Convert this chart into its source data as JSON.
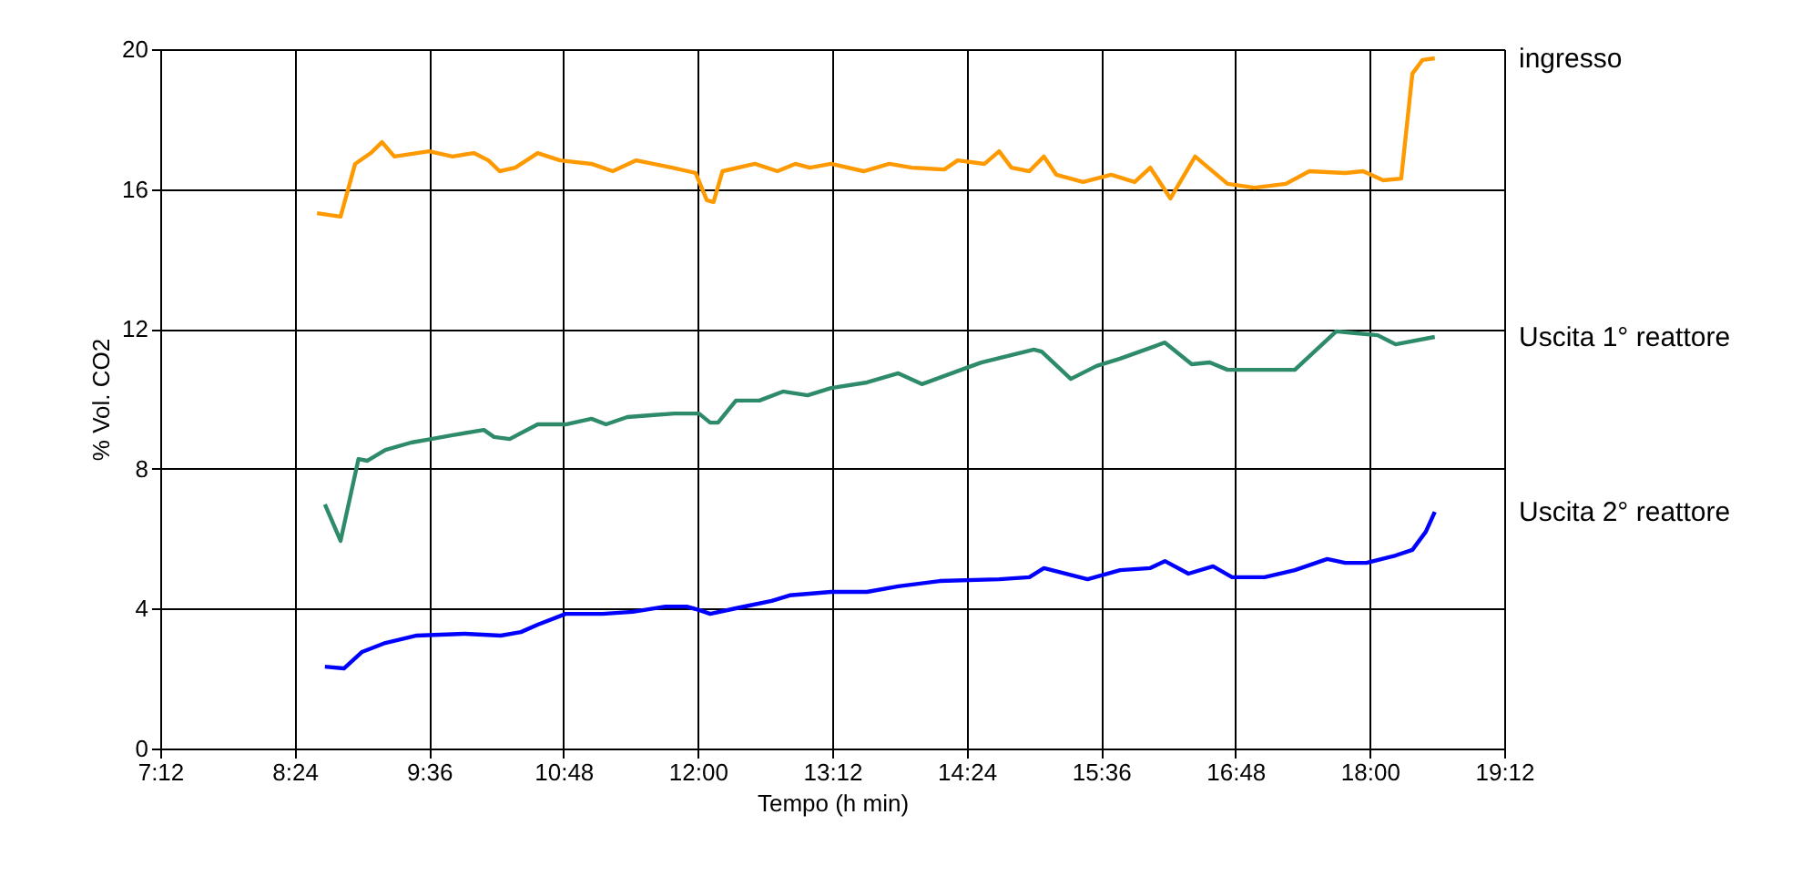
{
  "chart_data": {
    "type": "line",
    "xlabel": "Tempo (h min)",
    "ylabel": "% Vol. CO2",
    "xlim": [
      7.2,
      19.2
    ],
    "ylim": [
      0,
      20
    ],
    "xticks": [
      {
        "value": 7.2,
        "label": "7:12"
      },
      {
        "value": 8.4,
        "label": "8:24"
      },
      {
        "value": 9.6,
        "label": "9:36"
      },
      {
        "value": 10.8,
        "label": "10:48"
      },
      {
        "value": 12.0,
        "label": "12:00"
      },
      {
        "value": 13.2,
        "label": "13:12"
      },
      {
        "value": 14.4,
        "label": "14:24"
      },
      {
        "value": 15.6,
        "label": "15:36"
      },
      {
        "value": 16.8,
        "label": "16:48"
      },
      {
        "value": 18.0,
        "label": "18:00"
      },
      {
        "value": 19.2,
        "label": "19:12"
      }
    ],
    "yticks": [
      0,
      4,
      8,
      12,
      16,
      20
    ],
    "grid": true,
    "marker": "none",
    "line_style": "solid",
    "series": [
      {
        "name": "ingresso",
        "color": "#ff9900",
        "x": [
          8.6,
          8.81,
          8.94,
          9.08,
          9.18,
          9.29,
          9.6,
          9.81,
          10.0,
          10.13,
          10.23,
          10.37,
          10.57,
          10.77,
          11.05,
          11.24,
          11.45,
          11.77,
          11.98,
          12.08,
          12.14,
          12.22,
          12.51,
          12.71,
          12.87,
          13.0,
          13.19,
          13.48,
          13.71,
          13.91,
          14.2,
          14.32,
          14.56,
          14.69,
          14.8,
          14.96,
          15.09,
          15.2,
          15.44,
          15.69,
          15.9,
          16.04,
          16.22,
          16.44,
          16.73,
          16.97,
          17.25,
          17.46,
          17.78,
          17.94,
          18.12,
          18.28,
          18.38,
          18.47,
          18.58
        ],
        "values": [
          15.31,
          15.21,
          16.72,
          17.03,
          17.34,
          16.93,
          17.08,
          16.93,
          17.03,
          16.82,
          16.51,
          16.61,
          17.03,
          16.82,
          16.72,
          16.51,
          16.82,
          16.61,
          16.46,
          15.68,
          15.63,
          16.51,
          16.72,
          16.51,
          16.72,
          16.61,
          16.72,
          16.51,
          16.72,
          16.61,
          16.56,
          16.82,
          16.72,
          17.08,
          16.61,
          16.51,
          16.93,
          16.41,
          16.2,
          16.41,
          16.2,
          16.61,
          15.73,
          16.93,
          16.15,
          16.04,
          16.15,
          16.51,
          16.46,
          16.51,
          16.25,
          16.3,
          19.3,
          19.69,
          19.74
        ]
      },
      {
        "name": "Uscita 1° reattore",
        "color": "#2e8b6a",
        "x": [
          8.67,
          8.81,
          8.97,
          9.05,
          9.21,
          9.44,
          9.62,
          9.81,
          10.09,
          10.18,
          10.32,
          10.57,
          10.82,
          11.05,
          11.18,
          11.37,
          11.58,
          11.79,
          12.01,
          12.11,
          12.18,
          12.34,
          12.55,
          12.76,
          12.98,
          13.19,
          13.51,
          13.79,
          14.0,
          14.35,
          14.53,
          15.0,
          15.07,
          15.33,
          15.56,
          15.77,
          16.17,
          16.41,
          16.57,
          16.73,
          17.33,
          17.7,
          17.86,
          18.07,
          18.23,
          18.58
        ],
        "values": [
          6.98,
          5.94,
          8.28,
          8.23,
          8.54,
          8.75,
          8.85,
          8.96,
          9.11,
          8.91,
          8.85,
          9.27,
          9.27,
          9.43,
          9.27,
          9.48,
          9.53,
          9.58,
          9.58,
          9.32,
          9.32,
          9.95,
          9.95,
          10.21,
          10.1,
          10.31,
          10.47,
          10.73,
          10.42,
          10.83,
          11.04,
          11.41,
          11.35,
          10.57,
          10.94,
          11.15,
          11.61,
          10.99,
          11.04,
          10.83,
          10.83,
          11.93,
          11.88,
          11.82,
          11.56,
          11.77
        ]
      },
      {
        "name": "Uscita 2° reattore",
        "color": "#0000ff",
        "x": [
          8.67,
          8.84,
          9.0,
          9.21,
          9.49,
          9.92,
          10.24,
          10.42,
          10.57,
          10.82,
          11.15,
          11.42,
          11.71,
          11.9,
          12.01,
          12.11,
          12.34,
          12.66,
          12.82,
          13.19,
          13.51,
          13.79,
          14.16,
          14.69,
          14.96,
          15.09,
          15.48,
          15.77,
          16.04,
          16.17,
          16.38,
          16.6,
          16.77,
          17.06,
          17.33,
          17.62,
          17.78,
          17.97,
          18.23,
          18.38,
          18.5,
          18.58
        ],
        "values": [
          2.34,
          2.29,
          2.76,
          3.02,
          3.23,
          3.28,
          3.23,
          3.33,
          3.54,
          3.85,
          3.85,
          3.91,
          4.06,
          4.06,
          3.96,
          3.85,
          4.01,
          4.22,
          4.38,
          4.48,
          4.48,
          4.64,
          4.79,
          4.84,
          4.9,
          5.16,
          4.84,
          5.1,
          5.16,
          5.36,
          5.0,
          5.21,
          4.9,
          4.9,
          5.1,
          5.42,
          5.31,
          5.31,
          5.52,
          5.68,
          6.2,
          6.77
        ]
      }
    ]
  }
}
